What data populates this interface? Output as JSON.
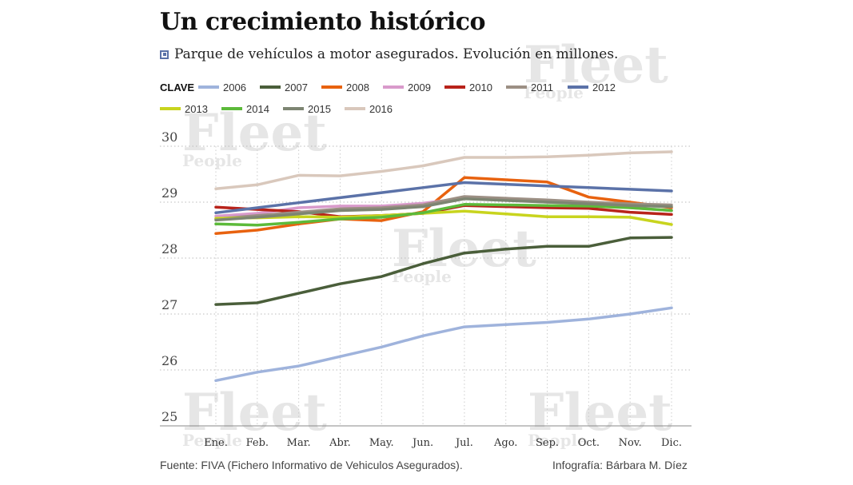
{
  "title": "Un crecimiento histórico",
  "subtitle": "Parque de vehículos a motor asegurados. Evolución en millones.",
  "legend_key_label": "CLAVE",
  "watermark": [
    "Fleet",
    "People"
  ],
  "footer": {
    "source": "Fuente: FIVA (Fichero Informativo de Vehiculos Asegurados).",
    "credit": "Infografía: Bárbara M. Díez"
  },
  "chart_data": {
    "type": "line",
    "title": "Un crecimiento histórico",
    "categories": [
      "Ene.",
      "Feb.",
      "Mar.",
      "Abr.",
      "May.",
      "Jun.",
      "Jul.",
      "Ago.",
      "Sep.",
      "Oct.",
      "Nov.",
      "Dic."
    ],
    "ylim": [
      25,
      30
    ],
    "yticks": [
      25,
      26,
      27,
      28,
      29,
      30
    ],
    "grid": true,
    "legend_placement": "top",
    "series": [
      {
        "name": "2006",
        "color": "#9fb3dc",
        "values": [
          25.81,
          25.96,
          26.07,
          26.24,
          26.41,
          26.61,
          26.77,
          26.81,
          26.85,
          26.91,
          27.0,
          27.11
        ]
      },
      {
        "name": "2007",
        "color": "#4a5e3a",
        "values": [
          27.17,
          27.2,
          27.37,
          27.54,
          27.67,
          27.9,
          28.09,
          28.16,
          28.21,
          28.21,
          28.36,
          28.37
        ]
      },
      {
        "name": "2008",
        "color": "#e8620f",
        "values": [
          28.44,
          28.5,
          28.61,
          28.7,
          28.67,
          28.83,
          29.44,
          29.4,
          29.36,
          29.09,
          29.0,
          28.9
        ]
      },
      {
        "name": "2009",
        "color": "#d99acb",
        "values": [
          28.75,
          28.8,
          28.9,
          28.93,
          28.93,
          28.98,
          29.07,
          29.04,
          29.0,
          28.98,
          28.9,
          28.85
        ]
      },
      {
        "name": "2010",
        "color": "#b8231a",
        "values": [
          28.91,
          28.87,
          28.83,
          28.74,
          28.76,
          28.8,
          28.94,
          28.92,
          28.9,
          28.89,
          28.82,
          28.78
        ]
      },
      {
        "name": "2011",
        "color": "#9c8f84",
        "values": [
          28.7,
          28.76,
          28.82,
          28.88,
          28.9,
          28.95,
          29.1,
          29.07,
          29.04,
          29.0,
          28.97,
          28.95
        ]
      },
      {
        "name": "2012",
        "color": "#5b72a8",
        "values": [
          28.81,
          28.9,
          28.99,
          29.08,
          29.17,
          29.26,
          29.35,
          29.32,
          29.29,
          29.26,
          29.23,
          29.2
        ]
      },
      {
        "name": "2013",
        "color": "#c8d41e",
        "values": [
          28.71,
          28.72,
          28.74,
          28.73,
          28.76,
          28.8,
          28.84,
          28.79,
          28.74,
          28.74,
          28.73,
          28.6
        ]
      },
      {
        "name": "2014",
        "color": "#5cba3a",
        "values": [
          28.61,
          28.59,
          28.64,
          28.7,
          28.73,
          28.81,
          28.96,
          28.95,
          28.94,
          28.93,
          28.9,
          28.85
        ]
      },
      {
        "name": "2015",
        "color": "#7d8572",
        "values": [
          28.68,
          28.73,
          28.79,
          28.85,
          28.87,
          28.92,
          29.06,
          29.03,
          29.0,
          28.97,
          28.94,
          28.92
        ]
      },
      {
        "name": "2016",
        "color": "#d9c8bc",
        "values": [
          29.24,
          29.31,
          29.48,
          29.47,
          29.55,
          29.65,
          29.8,
          29.8,
          29.81,
          29.84,
          29.88,
          29.9
        ]
      }
    ]
  }
}
